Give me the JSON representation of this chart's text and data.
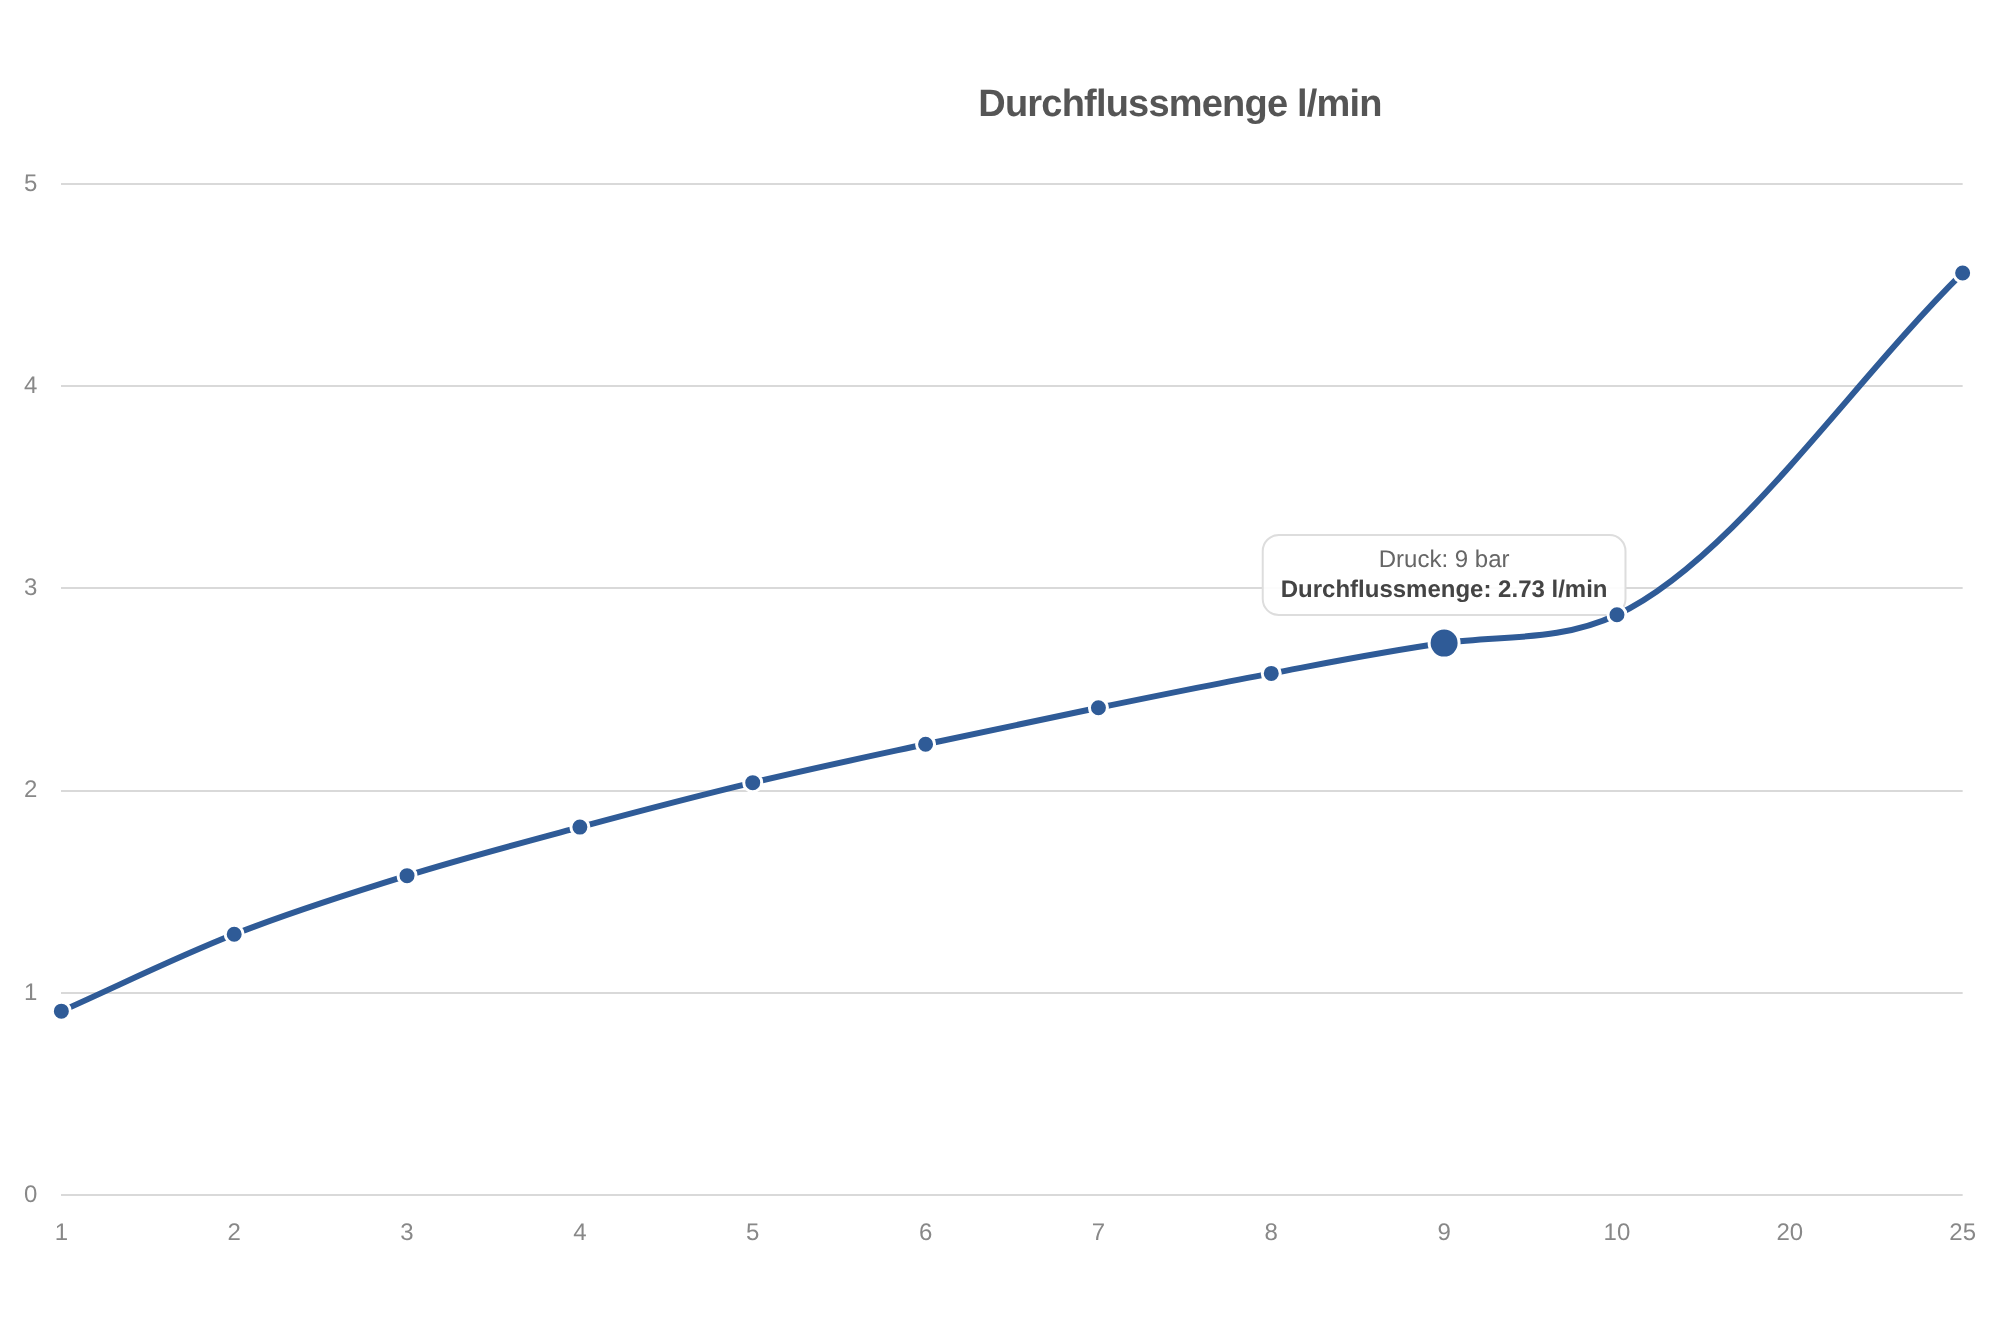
{
  "chart_data": {
    "type": "line",
    "title": "Durchflussmenge l/min",
    "categories": [
      "1",
      "2",
      "3",
      "4",
      "5",
      "6",
      "7",
      "8",
      "9",
      "10",
      "20",
      "25"
    ],
    "values": [
      0.91,
      1.29,
      1.58,
      1.82,
      2.04,
      2.23,
      2.41,
      2.58,
      2.73,
      2.87,
      null,
      4.56
    ],
    "color": "#2f5b97",
    "marker": "circle",
    "line_style": "solid",
    "ylim": [
      0,
      5
    ],
    "yticks": [
      0,
      1,
      2,
      3,
      4,
      5
    ],
    "grid": "y",
    "annotations": [
      {
        "text": "Druck: 9 bar\nDurchflussmenge: 2.73 l/min",
        "x": "9",
        "y": 2.73
      }
    ]
  }
}
